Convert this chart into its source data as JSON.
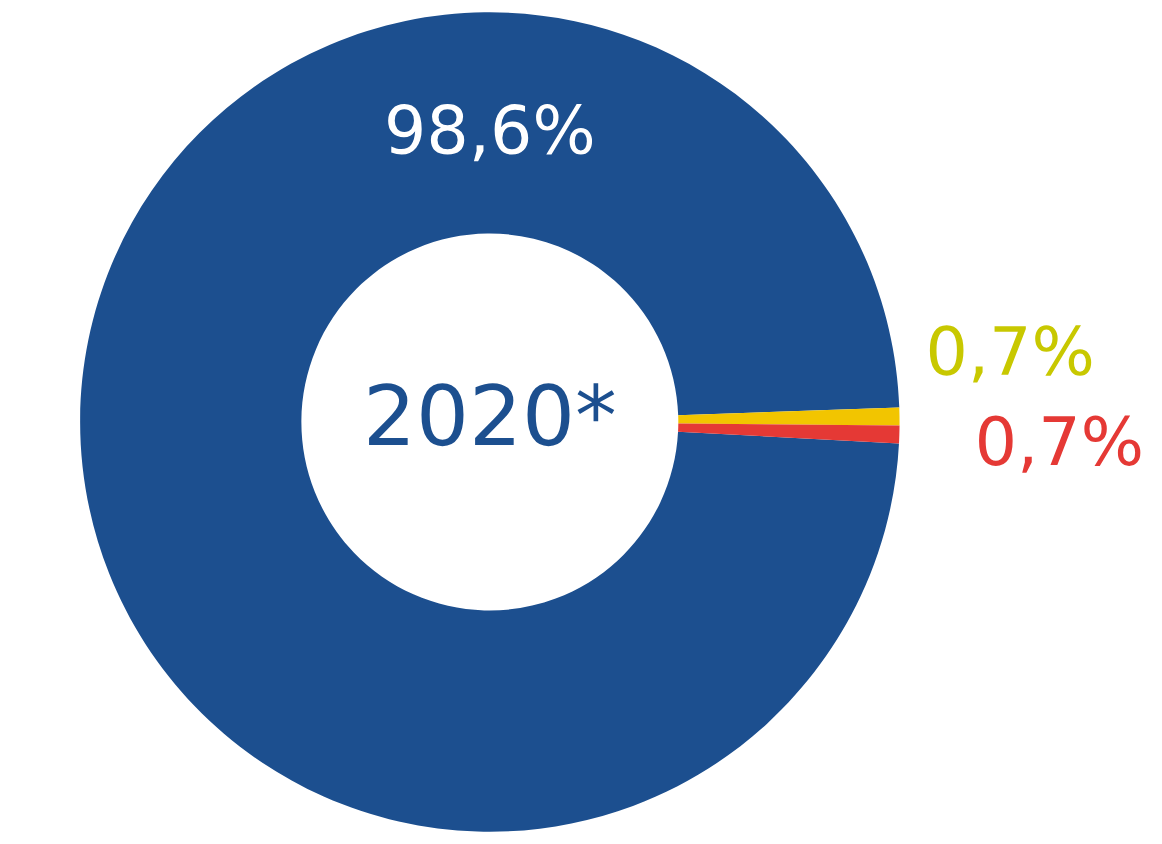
{
  "chart_data": {
    "type": "donut",
    "title": "2020*",
    "categories": [
      null,
      null,
      null
    ],
    "values": [
      98.6,
      0.7,
      0.7
    ],
    "colors": [
      "#1c4f8f",
      "#f2c500",
      "#e53935"
    ],
    "value_labels": [
      "98,6%",
      "0,7%",
      "0,7%"
    ]
  }
}
